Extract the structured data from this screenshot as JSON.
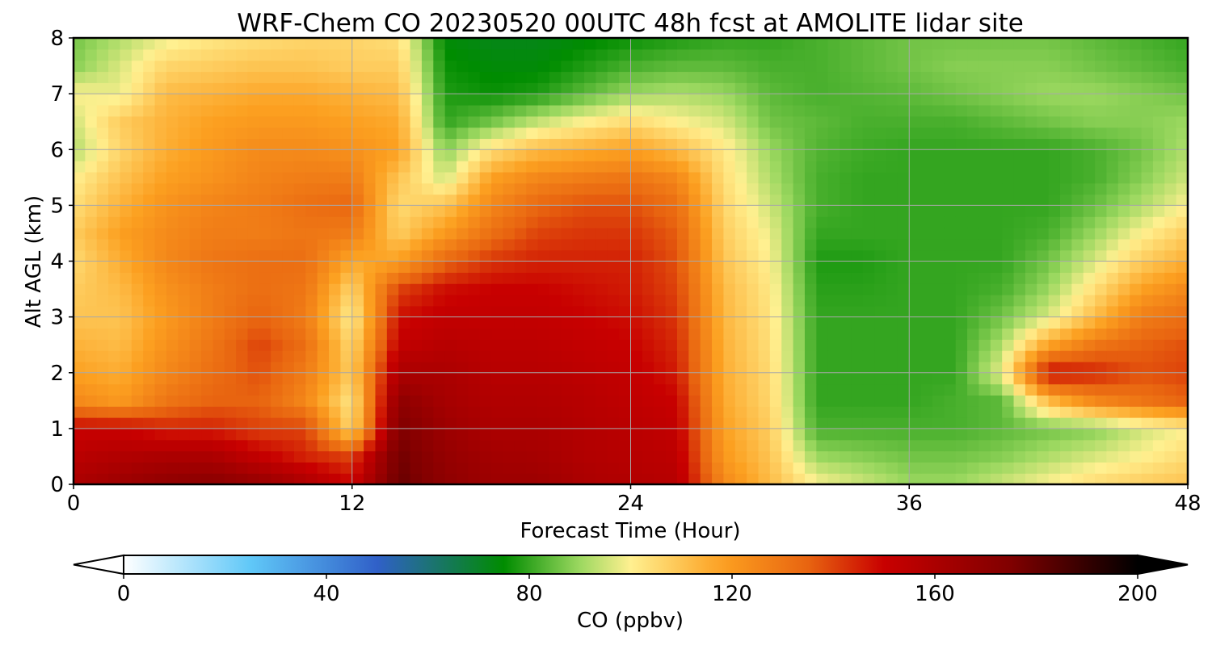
{
  "chart_data": {
    "type": "heatmap",
    "title": "WRF-Chem CO  20230520 00UTC 48h fcst at AMOLITE lidar site",
    "xlabel": "Forecast Time (Hour)",
    "ylabel": "Alt AGL (km)",
    "xlim": [
      0,
      48
    ],
    "ylim": [
      0,
      8
    ],
    "x_ticks": [
      0,
      12,
      24,
      36,
      48
    ],
    "y_ticks": [
      0,
      1,
      2,
      3,
      4,
      5,
      6,
      7,
      8
    ],
    "grid": true,
    "x": [
      0,
      2,
      4,
      6,
      8,
      10,
      12,
      14,
      16,
      18,
      20,
      22,
      24,
      26,
      28,
      30,
      32,
      34,
      36,
      38,
      40,
      42,
      44,
      46,
      48
    ],
    "y": [
      0,
      0.5,
      1,
      1.5,
      2,
      2.5,
      3,
      3.5,
      4,
      4.5,
      5,
      5.5,
      6,
      6.5,
      7,
      7.5,
      8
    ],
    "z": [
      [
        160,
        165,
        170,
        172,
        168,
        160,
        150,
        180,
        170,
        165,
        165,
        160,
        158,
        156,
        125,
        112,
        100,
        95,
        90,
        90,
        95,
        100,
        105,
        108,
        110
      ],
      [
        155,
        158,
        160,
        160,
        152,
        145,
        140,
        178,
        168,
        163,
        162,
        158,
        156,
        154,
        120,
        110,
        90,
        88,
        86,
        86,
        88,
        92,
        96,
        100,
        105
      ],
      [
        150,
        150,
        145,
        145,
        140,
        140,
        105,
        175,
        165,
        160,
        160,
        157,
        155,
        152,
        118,
        108,
        82,
        82,
        82,
        82,
        84,
        86,
        88,
        95,
        100
      ],
      [
        125,
        120,
        130,
        135,
        135,
        125,
        102,
        170,
        162,
        158,
        158,
        156,
        153,
        150,
        116,
        106,
        80,
        80,
        80,
        82,
        84,
        112,
        125,
        130,
        135
      ],
      [
        118,
        115,
        125,
        132,
        138,
        128,
        108,
        160,
        160,
        156,
        156,
        154,
        152,
        146,
        115,
        105,
        80,
        80,
        80,
        80,
        98,
        150,
        145,
        138,
        140
      ],
      [
        114,
        112,
        122,
        130,
        140,
        132,
        105,
        152,
        156,
        154,
        154,
        152,
        150,
        144,
        114,
        104,
        80,
        80,
        80,
        80,
        92,
        118,
        130,
        135,
        138
      ],
      [
        110,
        110,
        120,
        128,
        135,
        128,
        100,
        148,
        152,
        152,
        152,
        150,
        148,
        142,
        113,
        103,
        80,
        80,
        80,
        80,
        86,
        96,
        112,
        128,
        132
      ],
      [
        108,
        112,
        122,
        128,
        132,
        130,
        106,
        140,
        148,
        150,
        150,
        148,
        146,
        140,
        112,
        102,
        79,
        79,
        80,
        80,
        82,
        90,
        104,
        118,
        125
      ],
      [
        105,
        115,
        125,
        130,
        132,
        132,
        116,
        118,
        134,
        142,
        145,
        145,
        145,
        138,
        110,
        100,
        78,
        78,
        80,
        80,
        80,
        86,
        96,
        108,
        115
      ],
      [
        108,
        118,
        124,
        128,
        128,
        130,
        128,
        108,
        120,
        132,
        140,
        142,
        142,
        136,
        108,
        98,
        80,
        80,
        80,
        80,
        80,
        82,
        90,
        100,
        108
      ],
      [
        104,
        114,
        122,
        126,
        128,
        132,
        134,
        105,
        110,
        125,
        134,
        138,
        138,
        132,
        106,
        95,
        82,
        80,
        80,
        80,
        80,
        80,
        85,
        92,
        100
      ],
      [
        100,
        110,
        118,
        122,
        126,
        128,
        128,
        110,
        95,
        118,
        125,
        128,
        130,
        125,
        104,
        92,
        82,
        80,
        80,
        80,
        80,
        80,
        82,
        88,
        95
      ],
      [
        92,
        106,
        115,
        120,
        124,
        124,
        122,
        118,
        88,
        104,
        112,
        115,
        118,
        112,
        102,
        90,
        83,
        81,
        80,
        80,
        80,
        80,
        82,
        86,
        92
      ],
      [
        95,
        108,
        114,
        118,
        120,
        120,
        118,
        116,
        80,
        86,
        94,
        100,
        105,
        100,
        96,
        86,
        84,
        82,
        82,
        82,
        84,
        86,
        88,
        88,
        90
      ],
      [
        100,
        98,
        112,
        114,
        116,
        116,
        114,
        112,
        78,
        76,
        78,
        84,
        90,
        92,
        90,
        84,
        82,
        83,
        84,
        86,
        88,
        90,
        90,
        88,
        86
      ],
      [
        88,
        96,
        106,
        108,
        110,
        110,
        108,
        108,
        76,
        74,
        74,
        78,
        82,
        84,
        84,
        82,
        82,
        84,
        86,
        88,
        88,
        88,
        86,
        84,
        82
      ],
      [
        86,
        92,
        98,
        102,
        104,
        106,
        106,
        104,
        74,
        72,
        72,
        74,
        76,
        78,
        80,
        80,
        82,
        84,
        86,
        86,
        86,
        86,
        84,
        82,
        80
      ]
    ],
    "colorbar": {
      "label": "CO  (ppbv)",
      "min": 0,
      "max": 200,
      "ticks": [
        0,
        40,
        80,
        120,
        160,
        200
      ],
      "extend": "both",
      "colormap_stops": [
        {
          "v": 0,
          "c": "#ffffff"
        },
        {
          "v": 25,
          "c": "#60c8f8"
        },
        {
          "v": 50,
          "c": "#3060c8"
        },
        {
          "v": 75,
          "c": "#008c00"
        },
        {
          "v": 90,
          "c": "#9cd860"
        },
        {
          "v": 100,
          "c": "#fff090"
        },
        {
          "v": 118,
          "c": "#fca020"
        },
        {
          "v": 135,
          "c": "#e86410"
        },
        {
          "v": 150,
          "c": "#c80000"
        },
        {
          "v": 175,
          "c": "#800000"
        },
        {
          "v": 200,
          "c": "#000000"
        }
      ]
    }
  }
}
